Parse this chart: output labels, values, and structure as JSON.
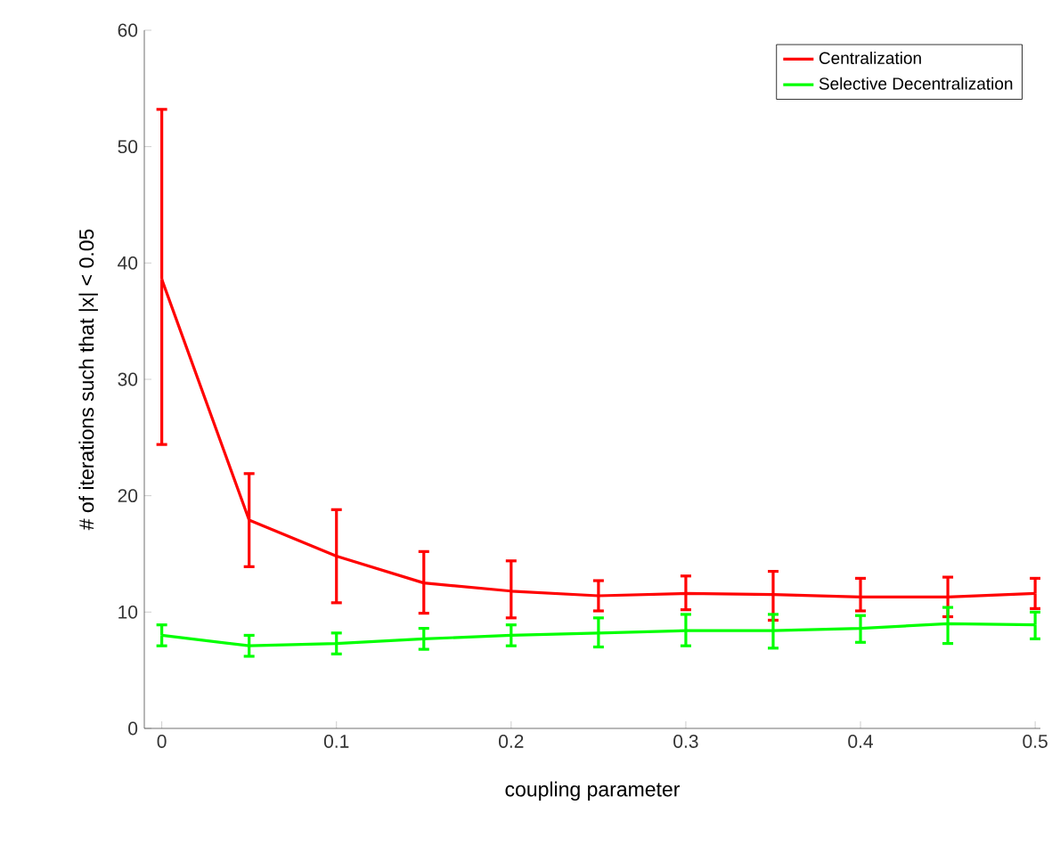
{
  "chart_data": {
    "type": "line",
    "xlabel": "coupling parameter",
    "ylabel": "# of iterations such that |x| < 0.05",
    "x": [
      0,
      0.05,
      0.1,
      0.15,
      0.2,
      0.25,
      0.3,
      0.35,
      0.4,
      0.45,
      0.5
    ],
    "series": [
      {
        "name": "Centralization",
        "color": "#ff0000",
        "values": [
          38.6,
          17.9,
          14.8,
          12.5,
          11.8,
          11.4,
          11.6,
          11.5,
          11.3,
          11.3,
          11.6
        ],
        "errors": [
          [
            24.4,
            53.2
          ],
          [
            13.9,
            21.9
          ],
          [
            10.8,
            18.8
          ],
          [
            9.9,
            15.2
          ],
          [
            9.5,
            14.4
          ],
          [
            10.1,
            12.7
          ],
          [
            10.2,
            13.1
          ],
          [
            9.3,
            13.5
          ],
          [
            10.1,
            12.9
          ],
          [
            9.6,
            13.0
          ],
          [
            10.3,
            12.9
          ]
        ]
      },
      {
        "name": "Selective Decentralization",
        "color": "#00ff00",
        "values": [
          8.0,
          7.1,
          7.3,
          7.7,
          8.0,
          8.2,
          8.4,
          8.4,
          8.6,
          9.0,
          8.9
        ],
        "errors": [
          [
            7.1,
            8.9
          ],
          [
            6.2,
            8.0
          ],
          [
            6.4,
            8.2
          ],
          [
            6.8,
            8.6
          ],
          [
            7.1,
            8.9
          ],
          [
            7.0,
            9.5
          ],
          [
            7.1,
            9.8
          ],
          [
            6.9,
            9.8
          ],
          [
            7.4,
            9.7
          ],
          [
            7.3,
            10.4
          ],
          [
            7.7,
            10.0
          ]
        ]
      }
    ],
    "xlim": [
      -0.01,
      0.503
    ],
    "ylim": [
      0,
      60
    ],
    "xticks": [
      0,
      0.1,
      0.2,
      0.3,
      0.4,
      0.5
    ],
    "yticks": [
      0,
      10,
      20,
      30,
      40,
      50,
      60
    ],
    "legend": "top right",
    "grid": false,
    "marker": "none",
    "line_style": "solid"
  }
}
